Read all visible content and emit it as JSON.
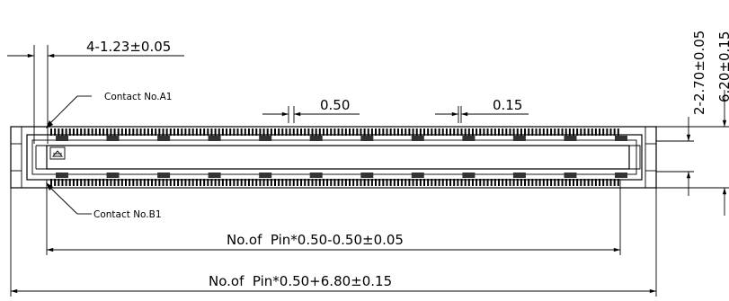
{
  "dimensions": {
    "pad_width": "4-1.23±0.05",
    "pitch": "0.50",
    "pin_width": "0.15",
    "inner_length": "No.of  Pin*0.50-0.50±0.05",
    "outer_length": "No.of  Pin*0.50+6.80±0.15",
    "peg_height": "2-2.70±0.05",
    "total_height": "6.20±0.15"
  },
  "labels": {
    "contact_a1": "Contact  No.A1",
    "contact_b1": "Contact  No.B1"
  }
}
